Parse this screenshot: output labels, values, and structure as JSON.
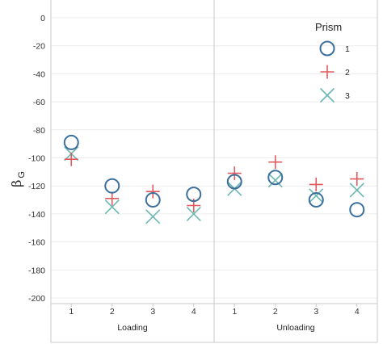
{
  "chart_data": {
    "type": "scatter",
    "ylabel": "β",
    "ylabel_subscript": "G",
    "ylim": [
      -200,
      0
    ],
    "yticks": [
      0,
      -20,
      -40,
      -60,
      -80,
      -100,
      -120,
      -140,
      -160,
      -180,
      -200
    ],
    "grid": "horizontal",
    "legend": {
      "title": "Prism",
      "placement": "top-right"
    },
    "facets": [
      {
        "label": "Loading",
        "categories": [
          "1",
          "2",
          "3",
          "4"
        ]
      },
      {
        "label": "Unloading",
        "categories": [
          "1",
          "2",
          "3",
          "4"
        ]
      }
    ],
    "series": [
      {
        "name": "1",
        "marker": "circle",
        "color": "#3d6f9c",
        "values": {
          "Loading": [
            -89,
            -120,
            -130,
            -126
          ],
          "Unloading": [
            -117,
            -114,
            -130,
            -137
          ]
        }
      },
      {
        "name": "2",
        "marker": "plus",
        "color": "#e05a5f",
        "values": {
          "Loading": [
            -101,
            -129,
            -124,
            -134
          ],
          "Unloading": [
            -111,
            -103,
            -119,
            -115
          ]
        }
      },
      {
        "name": "3",
        "marker": "x",
        "color": "#6bb8b3",
        "values": {
          "Loading": [
            -97,
            -135,
            -142,
            -140
          ],
          "Unloading": [
            -122,
            -116,
            -127,
            -123
          ]
        }
      }
    ]
  }
}
